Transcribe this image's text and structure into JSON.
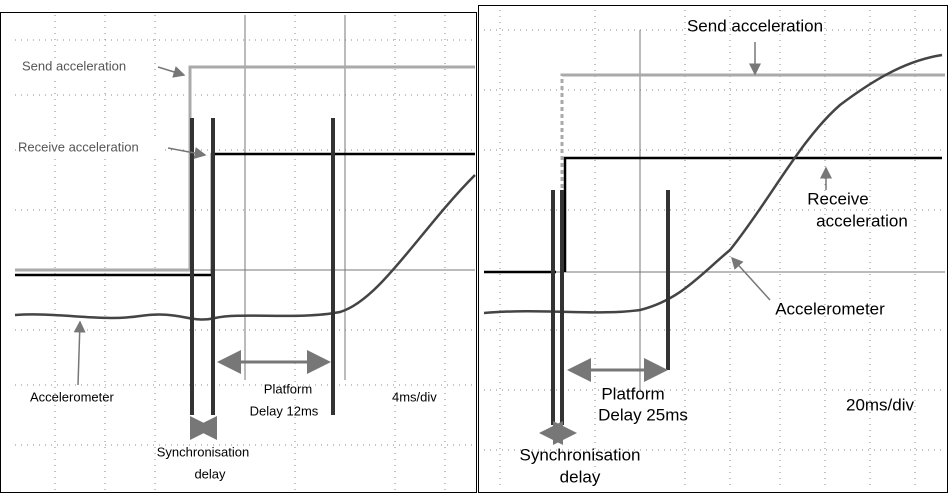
{
  "left_panel": {
    "send_label": "Send acceleration",
    "receive_label": "Receive acceleration",
    "accelerometer_label": "Accelerometer",
    "platform_label": [
      "Platform",
      "Delay 12ms"
    ],
    "timebase": "4ms/div",
    "sync_label": [
      "Synchronisation",
      "delay"
    ]
  },
  "right_panel": {
    "send_label": "Send acceleration",
    "receive_label": [
      "Receive",
      "acceleration"
    ],
    "accelerometer_label": "Accelerometer",
    "platform_label": [
      "Platform",
      "Delay 25ms"
    ],
    "timebase": "20ms/div",
    "sync_label": [
      "Synchronisation",
      "delay"
    ]
  }
}
